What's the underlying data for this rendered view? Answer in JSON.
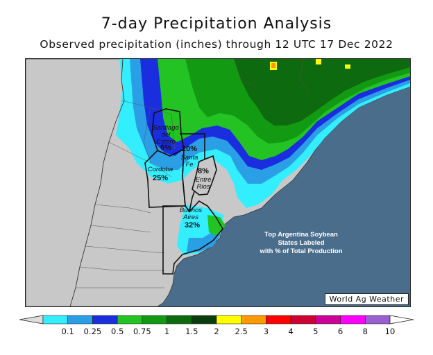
{
  "header": {
    "title": "7-day Precipitation Analysis",
    "subtitle": "Observed precipitation (inches) through 12 UTC 17 Dec 2022"
  },
  "states": [
    {
      "id": "santiago",
      "name_lines": [
        "Santiago",
        "del",
        "Estero"
      ],
      "share": "6%"
    },
    {
      "id": "santafe",
      "name_lines": [
        "Santa",
        "Fe"
      ],
      "share": "20%"
    },
    {
      "id": "cordoba",
      "name_lines": [
        "Cordoba"
      ],
      "share": "25%"
    },
    {
      "id": "entrerios",
      "name_lines": [
        "Entre",
        "Rios"
      ],
      "share": "8%"
    },
    {
      "id": "buenosaires",
      "name_lines": [
        "Buenos",
        "Aires"
      ],
      "share": "32%"
    }
  ],
  "annotation": {
    "line1": "Top Argentina Soybean",
    "line2": "States Labeled",
    "line3": "with % of Total Production"
  },
  "credit": "World Ag Weather",
  "legend": {
    "ticks": [
      "0.1",
      "0.25",
      "0.5",
      "0.75",
      "1",
      "1.5",
      "2",
      "2.5",
      "3",
      "4",
      "5",
      "6",
      "8",
      "10"
    ],
    "colors": [
      "#33eeff",
      "#2a9fe6",
      "#1a2ee0",
      "#22c322",
      "#139a13",
      "#0e6a0e",
      "#0b3c0b",
      "#ffff00",
      "#ff9900",
      "#ff0000",
      "#cc0033",
      "#cc0099",
      "#ff00ff",
      "#9a5fd0"
    ],
    "low_color": "#dddddd",
    "high_color": "#ffffff"
  },
  "colors": {
    "ocean": "#4a6d8c",
    "land_dry": "#c8c8c8"
  }
}
